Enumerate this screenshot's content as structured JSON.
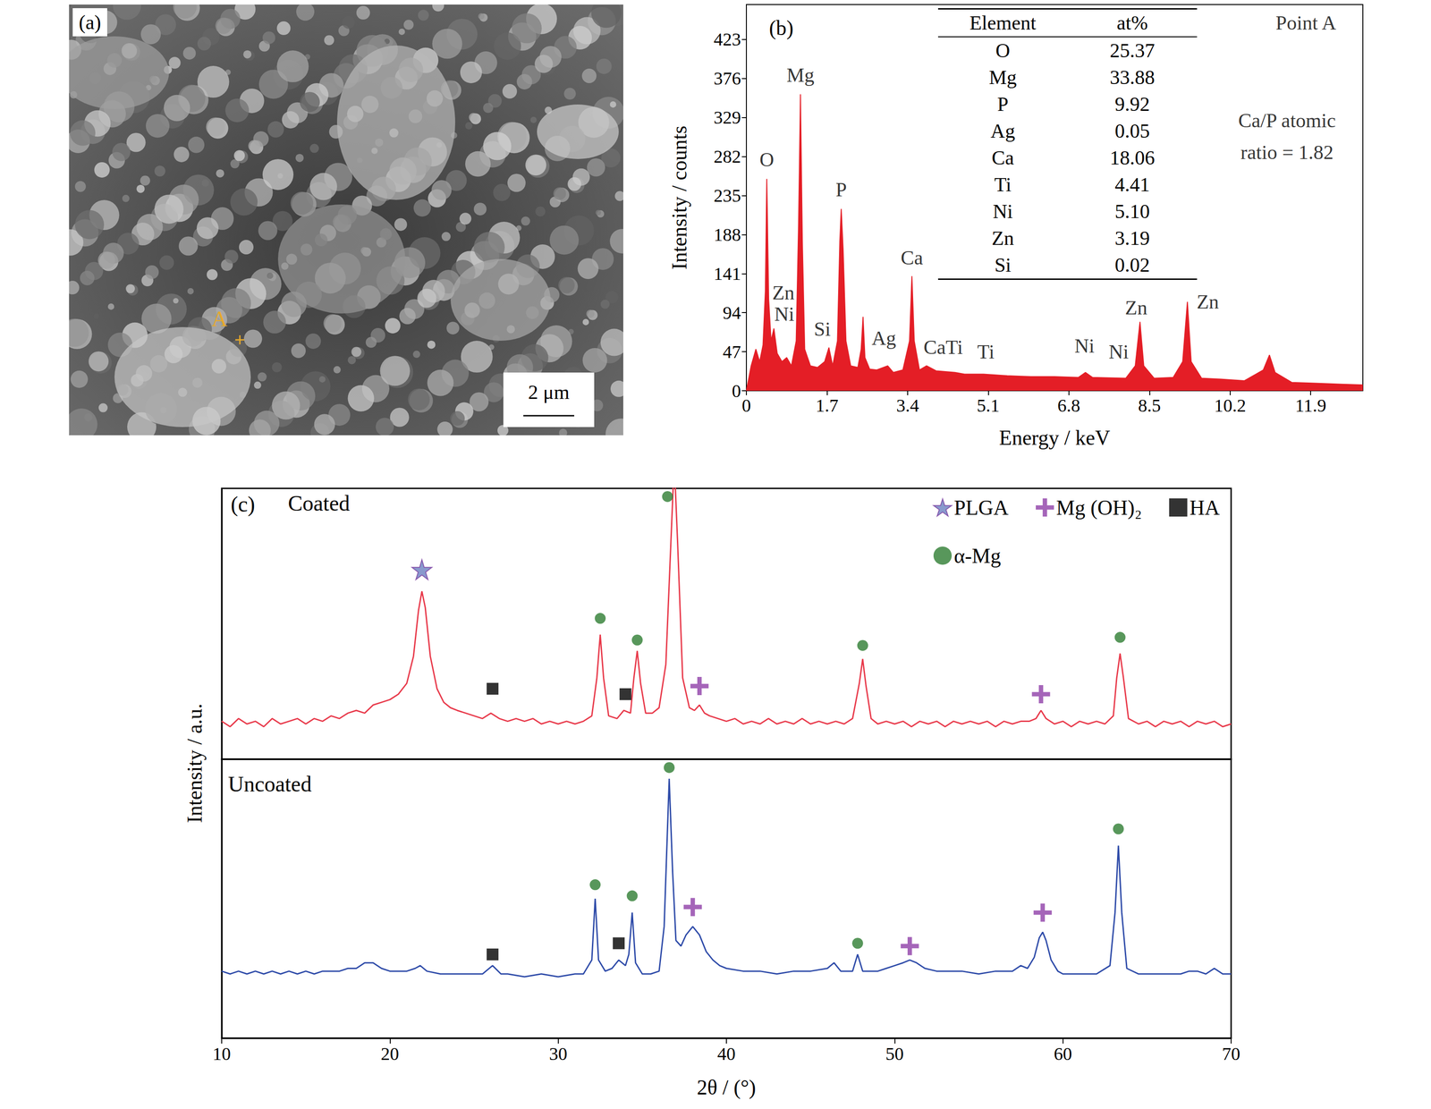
{
  "image": {
    "title": "(a)",
    "point": "A",
    "scale_bar": "2 μm"
  },
  "chart_data": [
    {
      "type": "line",
      "title": "(b)",
      "x_label": "Energy / keV",
      "y_label": "Intensity / counts",
      "xlim": [
        0,
        13.0
      ],
      "xticks": [
        0,
        1.7,
        3.4,
        5.1,
        6.8,
        8.5,
        10.2,
        11.9
      ],
      "ylim": [
        0,
        465
      ],
      "yticks": [
        0,
        47,
        94,
        141,
        188,
        235,
        282,
        329,
        376,
        423
      ],
      "grid": false,
      "series": [
        {
          "color": "#e41e26",
          "x": [
            0,
            0.1,
            0.2,
            0.28,
            0.35,
            0.4,
            0.43,
            0.47,
            0.52,
            0.58,
            0.65,
            0.75,
            0.85,
            0.95,
            1.05,
            1.1,
            1.14,
            1.18,
            1.23,
            1.35,
            1.5,
            1.65,
            1.74,
            1.82,
            1.92,
            1.97,
            2.0,
            2.04,
            2.1,
            2.2,
            2.35,
            2.42,
            2.46,
            2.5,
            2.6,
            2.75,
            2.98,
            3.1,
            3.3,
            3.44,
            3.49,
            3.54,
            3.65,
            3.8,
            4.0,
            4.4,
            4.6,
            5.0,
            5.5,
            6.0,
            6.5,
            7.0,
            7.15,
            7.3,
            8.0,
            8.2,
            8.3,
            8.38,
            8.6,
            9.0,
            9.2,
            9.3,
            9.38,
            9.6,
            10.0,
            10.5,
            10.9,
            11.03,
            11.15,
            11.5,
            12.0,
            12.5,
            13.0
          ],
          "values": [
            0,
            30,
            50,
            35,
            55,
            120,
            255,
            110,
            60,
            75,
            45,
            35,
            40,
            30,
            60,
            200,
            357,
            180,
            50,
            30,
            28,
            35,
            52,
            30,
            60,
            180,
            219,
            170,
            60,
            30,
            28,
            50,
            89,
            40,
            26,
            25,
            30,
            22,
            25,
            60,
            138,
            60,
            25,
            30,
            24,
            22,
            20,
            20,
            18,
            17,
            17,
            16,
            22,
            16,
            15,
            30,
            83,
            30,
            15,
            16,
            35,
            107,
            35,
            15,
            14,
            12,
            25,
            43,
            22,
            10,
            9,
            8,
            7
          ]
        }
      ],
      "annotations": [
        {
          "text": "O",
          "x": 0.43,
          "y": 278
        },
        {
          "text": "Mg",
          "x": 1.14,
          "y": 380
        },
        {
          "text": "P",
          "x": 2.0,
          "y": 242
        },
        {
          "text": "Ca",
          "x": 3.49,
          "y": 160
        },
        {
          "text": "Zn",
          "x": 0.78,
          "y": 118
        },
        {
          "text": "Ni",
          "x": 0.8,
          "y": 92
        },
        {
          "text": "Si",
          "x": 1.6,
          "y": 74
        },
        {
          "text": "Ag",
          "x": 2.9,
          "y": 63
        },
        {
          "text": "CaTi",
          "x": 4.15,
          "y": 52
        },
        {
          "text": "Ti",
          "x": 5.05,
          "y": 47
        },
        {
          "text": "Ni",
          "x": 7.13,
          "y": 54
        },
        {
          "text": "Ni",
          "x": 7.85,
          "y": 47
        },
        {
          "text": "Zn",
          "x": 8.22,
          "y": 100
        },
        {
          "text": "Zn",
          "x": 9.73,
          "y": 107
        },
        {
          "text": "Point A",
          "x": 11.8,
          "y": 443
        },
        {
          "text": "Ca/P atomic",
          "x": 11.4,
          "y": 325
        },
        {
          "text": "ratio = 1.82",
          "x": 11.4,
          "y": 287
        }
      ],
      "table": {
        "header": [
          "Element",
          "at%"
        ],
        "rows": [
          [
            "O",
            "25.37"
          ],
          [
            "Mg",
            "33.88"
          ],
          [
            "P",
            "9.92"
          ],
          [
            "Ag",
            "0.05"
          ],
          [
            "Ca",
            "18.06"
          ],
          [
            "Ti",
            "4.41"
          ],
          [
            "Ni",
            "5.10"
          ],
          [
            "Zn",
            "3.19"
          ],
          [
            "Si",
            "0.02"
          ]
        ]
      }
    },
    {
      "type": "line",
      "title": "(c)",
      "x_label": "2θ / (°)",
      "y_label": "Intensity / a.u.",
      "xlim": [
        10,
        70
      ],
      "xticks": [
        10,
        20,
        30,
        40,
        50,
        60,
        70
      ],
      "tick_labels": "x",
      "grid": false,
      "legend": "upper right",
      "panels": [
        {
          "name": "Coated",
          "ylim": [
            0,
            100
          ],
          "series": [
            {
              "type": "line",
              "color": "#e8394a",
              "x": [
                10,
                10.5,
                11,
                11.5,
                12,
                12.5,
                13,
                13.5,
                14,
                14.5,
                15,
                15.5,
                16,
                16.5,
                17,
                17.5,
                18,
                18.5,
                19,
                19.5,
                20,
                20.5,
                21,
                21.4,
                21.7,
                21.9,
                22.1,
                22.4,
                22.8,
                23.2,
                23.6,
                24,
                24.5,
                25,
                25.5,
                26,
                26.5,
                27,
                27.5,
                28,
                28.5,
                29,
                29.5,
                30,
                30.5,
                31,
                31.5,
                32,
                32.3,
                32.5,
                32.7,
                33,
                33.5,
                33.9,
                34.3,
                34.5,
                34.7,
                34.9,
                35.2,
                35.6,
                36,
                36.4,
                36.7,
                36.9,
                37.1,
                37.4,
                37.8,
                38.1,
                38.4,
                38.7,
                39,
                39.5,
                40,
                40.5,
                41,
                41.5,
                42,
                42.5,
                43,
                43.5,
                44,
                44.5,
                45,
                45.5,
                46,
                46.5,
                47,
                47.5,
                47.9,
                48.1,
                48.3,
                48.6,
                49,
                49.5,
                50,
                50.5,
                51,
                51.5,
                52,
                52.5,
                53,
                53.5,
                54,
                54.5,
                55,
                55.5,
                56,
                56.5,
                57,
                57.5,
                58,
                58.4,
                58.7,
                59,
                59.5,
                60,
                60.5,
                61,
                61.5,
                62,
                62.5,
                63,
                63.2,
                63.4,
                63.6,
                63.9,
                64.5,
                65,
                65.5,
                66,
                66.5,
                67,
                67.5,
                68,
                68.5,
                69,
                69.5,
                70
              ],
              "values": [
                14,
                12,
                15,
                13,
                14,
                12,
                15,
                13,
                14,
                15,
                13,
                15,
                14,
                16,
                15,
                17,
                18,
                17,
                20,
                21,
                22,
                24,
                28,
                38,
                55,
                62,
                56,
                38,
                26,
                21,
                19,
                18,
                17,
                16,
                15,
                17,
                15,
                14,
                15,
                14,
                15,
                13,
                14,
                13,
                14,
                13,
                14,
                16,
                30,
                46,
                30,
                16,
                15,
                18,
                17,
                30,
                40,
                28,
                17,
                17,
                19,
                35,
                80,
                110,
                80,
                30,
                19,
                18,
                20,
                17,
                16,
                15,
                14,
                15,
                13,
                14,
                13,
                15,
                13,
                14,
                13,
                15,
                13,
                14,
                13,
                14,
                13,
                15,
                28,
                37,
                27,
                15,
                13,
                14,
                13,
                14,
                12,
                14,
                13,
                14,
                12,
                14,
                13,
                14,
                13,
                14,
                12,
                14,
                13,
                14,
                14,
                15,
                18,
                15,
                13,
                14,
                12,
                14,
                13,
                14,
                13,
                16,
                30,
                39,
                30,
                15,
                13,
                14,
                12,
                14,
                13,
                14,
                12,
                14,
                13,
                14,
                12,
                13
              ]
            },
            {
              "type": "scatter",
              "name": "PLGA",
              "marker": "star",
              "color": "#6b7fc0",
              "x": [
                21.9
              ],
              "values": [
                70
              ]
            },
            {
              "type": "scatter",
              "name": "Mg (OH)₂",
              "marker": "plus",
              "color": "#8e3fa8",
              "x": [
                38.4,
                58.7
              ],
              "values": [
                27,
                24
              ]
            },
            {
              "type": "scatter",
              "name": "HA",
              "marker": "square",
              "color": "#000000",
              "x": [
                26.1,
                34.0
              ],
              "values": [
                26,
                24
              ]
            },
            {
              "type": "scatter",
              "name": "α-Mg",
              "marker": "circle",
              "color": "#2e7d32",
              "x": [
                32.5,
                34.7,
                36.5,
                48.1,
                63.4
              ],
              "values": [
                52,
                44,
                97,
                42,
                45
              ]
            }
          ]
        },
        {
          "name": "Uncoated",
          "ylim": [
            0,
            100
          ],
          "series": [
            {
              "type": "line",
              "color": "#2d4aa8",
              "x": [
                10,
                10.5,
                11,
                11.5,
                12,
                12.5,
                13,
                13.5,
                14,
                14.5,
                15,
                15.5,
                16,
                16.5,
                17,
                17.5,
                18,
                18.5,
                19,
                19.5,
                20,
                20.5,
                21,
                21.5,
                21.8,
                22.2,
                23,
                24,
                25,
                25.5,
                26.1,
                26.6,
                27,
                28,
                29,
                30,
                31,
                31.5,
                32,
                32.2,
                32.4,
                32.8,
                33.2,
                33.6,
                34,
                34.2,
                34.4,
                34.6,
                35,
                35.5,
                36,
                36.3,
                36.6,
                36.8,
                37,
                37.3,
                37.6,
                38,
                38.4,
                38.8,
                39.2,
                39.6,
                40,
                41,
                42,
                43,
                44,
                45,
                46,
                46.4,
                46.8,
                47.5,
                47.8,
                48.1,
                48.5,
                49,
                49.5,
                50,
                50.5,
                50.9,
                51.3,
                51.8,
                52.5,
                53,
                54,
                55,
                56,
                57,
                57.5,
                57.9,
                58.3,
                58.6,
                58.8,
                59,
                59.3,
                59.7,
                60,
                61,
                62,
                62.8,
                63.1,
                63.3,
                63.5,
                63.8,
                64.5,
                65,
                66,
                67,
                67.5,
                68,
                68.5,
                69,
                69.5,
                70
              ],
              "values": [
                24,
                23,
                24,
                23,
                24,
                23,
                24,
                23,
                24,
                23,
                24,
                23,
                24,
                24,
                24,
                25,
                25,
                27,
                27,
                25,
                24,
                24,
                24,
                25,
                26,
                24,
                23,
                23,
                23,
                23,
                26,
                23,
                23,
                22,
                23,
                22,
                23,
                23,
                28,
                50,
                28,
                24,
                25,
                28,
                26,
                30,
                45,
                27,
                23,
                23,
                24,
                40,
                93,
                60,
                35,
                33,
                37,
                40,
                37,
                31,
                28,
                26,
                25,
                24,
                24,
                23,
                24,
                24,
                25,
                27,
                24,
                24,
                30,
                24,
                24,
                24,
                25,
                26,
                27,
                28,
                27,
                25,
                24,
                24,
                24,
                23,
                24,
                24,
                26,
                25,
                29,
                36,
                38,
                35,
                28,
                24,
                23,
                23,
                23,
                26,
                45,
                69,
                45,
                25,
                23,
                23,
                23,
                23,
                24,
                24,
                23,
                25,
                23,
                23
              ]
            },
            {
              "type": "scatter",
              "name": "Mg (OH)₂",
              "marker": "plus",
              "color": "#8e3fa8",
              "x": [
                38.0,
                50.9,
                58.8
              ],
              "values": [
                47,
                33,
                45
              ]
            },
            {
              "type": "scatter",
              "name": "HA",
              "marker": "square",
              "color": "#000000",
              "x": [
                26.1,
                33.6
              ],
              "values": [
                30,
                34
              ]
            },
            {
              "type": "scatter",
              "name": "α-Mg",
              "marker": "circle",
              "color": "#2e7d32",
              "x": [
                32.2,
                34.4,
                36.6,
                47.8,
                63.3
              ],
              "values": [
                55,
                51,
                97,
                34,
                75
              ]
            }
          ]
        }
      ]
    }
  ]
}
